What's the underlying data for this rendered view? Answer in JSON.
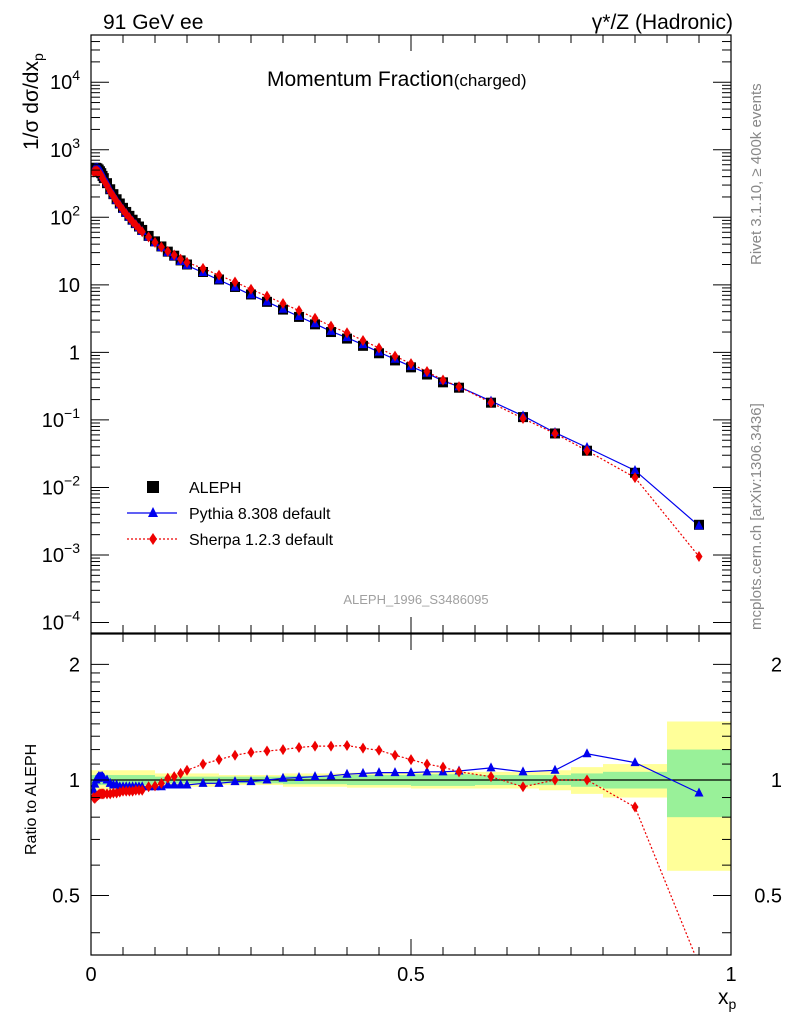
{
  "header": {
    "left": "91 GeV ee",
    "right": "γ*/Z (Hadronic)"
  },
  "side_labels": {
    "rivet": "Rivet 3.1.10, ≥ 400k events",
    "mcplots": "mcplots.cern.ch [arXiv:1306.3436]"
  },
  "colors": {
    "aleph": "#000000",
    "pythia": "#0000ee",
    "sherpa": "#ee0000",
    "band_inner": "#99f199",
    "band_outer": "#ffff99"
  },
  "chart_data": [
    {
      "type": "scatter",
      "title": "Momentum Fraction",
      "title_suffix": "(charged)",
      "ylabel": "1/σ dσ/dx",
      "ylabel_sub": "p",
      "analysis_tag": "ALEPH_1996_S3486095",
      "yscale": "log",
      "xlim": [
        0,
        1
      ],
      "ylim": [
        7e-05,
        50000
      ],
      "ytick_labels": [
        "10^-4",
        "10^-3",
        "10^-2",
        "10^-1",
        "1",
        "10",
        "10^2",
        "10^3",
        "10^4"
      ],
      "legend_position": "bottom-left",
      "series": [
        {
          "name": "ALEPH",
          "marker": "square",
          "x": [
            0.004,
            0.006,
            0.008,
            0.01,
            0.012,
            0.014,
            0.016,
            0.018,
            0.02,
            0.025,
            0.03,
            0.035,
            0.04,
            0.045,
            0.05,
            0.055,
            0.06,
            0.065,
            0.07,
            0.075,
            0.08,
            0.09,
            0.1,
            0.11,
            0.12,
            0.13,
            0.14,
            0.15,
            0.175,
            0.2,
            0.225,
            0.25,
            0.275,
            0.3,
            0.325,
            0.35,
            0.375,
            0.4,
            0.425,
            0.45,
            0.475,
            0.5,
            0.525,
            0.55,
            0.575,
            0.625,
            0.675,
            0.725,
            0.775,
            0.85,
            0.95
          ],
          "values": [
            520,
            540,
            540,
            530,
            510,
            480,
            450,
            410,
            380,
            320,
            260,
            220,
            185,
            160,
            138,
            120,
            105,
            92,
            82,
            73,
            65,
            53,
            44,
            37,
            31,
            27,
            23,
            20,
            15.5,
            12.0,
            9.3,
            7.2,
            5.6,
            4.3,
            3.35,
            2.6,
            2.0,
            1.6,
            1.25,
            0.97,
            0.76,
            0.6,
            0.47,
            0.36,
            0.3,
            0.18,
            0.11,
            0.063,
            0.035,
            0.0165,
            0.0028
          ]
        },
        {
          "name": "Pythia 8.308 default",
          "marker": "triangle",
          "x": [
            0.004,
            0.006,
            0.008,
            0.01,
            0.012,
            0.014,
            0.016,
            0.018,
            0.02,
            0.025,
            0.03,
            0.035,
            0.04,
            0.045,
            0.05,
            0.055,
            0.06,
            0.065,
            0.07,
            0.075,
            0.08,
            0.09,
            0.1,
            0.11,
            0.12,
            0.13,
            0.14,
            0.15,
            0.175,
            0.2,
            0.225,
            0.25,
            0.275,
            0.3,
            0.325,
            0.35,
            0.375,
            0.4,
            0.425,
            0.45,
            0.475,
            0.5,
            0.525,
            0.55,
            0.575,
            0.625,
            0.675,
            0.725,
            0.775,
            0.85,
            0.95
          ],
          "values": [
            490,
            527,
            540,
            535,
            520,
            490,
            460,
            420,
            385,
            320,
            255,
            213,
            179,
            154,
            132,
            115,
            100,
            88,
            79,
            70,
            62,
            51,
            42,
            35.5,
            30,
            26,
            22.2,
            19.4,
            15.2,
            11.8,
            9.2,
            7.1,
            5.6,
            4.35,
            3.4,
            2.65,
            2.05,
            1.65,
            1.3,
            1.01,
            0.79,
            0.62,
            0.49,
            0.38,
            0.31,
            0.19,
            0.115,
            0.065,
            0.039,
            0.0178,
            0.0027
          ]
        },
        {
          "name": "Sherpa 1.2.3 default",
          "marker": "diamond",
          "x": [
            0.004,
            0.006,
            0.008,
            0.01,
            0.012,
            0.014,
            0.016,
            0.018,
            0.02,
            0.025,
            0.03,
            0.035,
            0.04,
            0.045,
            0.05,
            0.055,
            0.06,
            0.065,
            0.07,
            0.075,
            0.08,
            0.09,
            0.1,
            0.11,
            0.12,
            0.13,
            0.14,
            0.15,
            0.175,
            0.2,
            0.225,
            0.25,
            0.275,
            0.3,
            0.325,
            0.35,
            0.375,
            0.4,
            0.425,
            0.45,
            0.475,
            0.5,
            0.525,
            0.55,
            0.575,
            0.625,
            0.675,
            0.725,
            0.775,
            0.85,
            0.95
          ],
          "values": [
            468,
            483,
            488,
            482,
            467,
            442,
            414,
            377,
            350,
            294,
            240,
            204,
            171,
            149,
            129,
            112,
            98,
            86,
            77,
            68,
            61,
            51,
            42.5,
            36.3,
            31.3,
            27.7,
            24,
            21.5,
            17.5,
            13.9,
            11.0,
            8.6,
            6.8,
            5.3,
            4.15,
            3.2,
            2.45,
            1.95,
            1.5,
            1.16,
            0.88,
            0.68,
            0.52,
            0.39,
            0.31,
            0.18,
            0.105,
            0.063,
            0.035,
            0.014,
            0.00095
          ]
        }
      ]
    },
    {
      "type": "scatter",
      "ylabel": "Ratio to ALEPH",
      "xlabel": "x",
      "xlabel_sub": "p",
      "xlim": [
        0,
        1
      ],
      "ylim": [
        0.35,
        2.4
      ],
      "ytick_labels": [
        "0.5",
        "1",
        "2"
      ],
      "xtick_labels": [
        "0",
        "0.5",
        "1"
      ],
      "bands": [
        {
          "x0": 0.0,
          "x1": 0.1,
          "inner": 0.03,
          "outer": 0.06
        },
        {
          "x0": 0.1,
          "x1": 0.2,
          "inner": 0.02,
          "outer": 0.04
        },
        {
          "x0": 0.2,
          "x1": 0.3,
          "inner": 0.02,
          "outer": 0.03
        },
        {
          "x0": 0.3,
          "x1": 0.4,
          "inner": 0.025,
          "outer": 0.04
        },
        {
          "x0": 0.4,
          "x1": 0.5,
          "inner": 0.03,
          "outer": 0.045
        },
        {
          "x0": 0.5,
          "x1": 0.6,
          "inner": 0.035,
          "outer": 0.05
        },
        {
          "x0": 0.6,
          "x1": 0.7,
          "inner": 0.03,
          "outer": 0.05
        },
        {
          "x0": 0.7,
          "x1": 0.75,
          "inner": 0.03,
          "outer": 0.06
        },
        {
          "x0": 0.75,
          "x1": 0.8,
          "inner": 0.04,
          "outer": 0.08
        },
        {
          "x0": 0.8,
          "x1": 0.9,
          "inner": 0.05,
          "outer": 0.1
        },
        {
          "x0": 0.9,
          "x1": 1.0,
          "inner": 0.2,
          "outer": 0.42
        }
      ],
      "series": [
        {
          "name": "Pythia 8.308 default",
          "marker": "triangle",
          "x": [
            0.004,
            0.006,
            0.008,
            0.01,
            0.012,
            0.014,
            0.016,
            0.018,
            0.02,
            0.025,
            0.03,
            0.035,
            0.04,
            0.045,
            0.05,
            0.055,
            0.06,
            0.065,
            0.07,
            0.075,
            0.08,
            0.09,
            0.1,
            0.11,
            0.12,
            0.13,
            0.14,
            0.15,
            0.175,
            0.2,
            0.225,
            0.25,
            0.275,
            0.3,
            0.325,
            0.35,
            0.375,
            0.4,
            0.425,
            0.45,
            0.475,
            0.5,
            0.525,
            0.55,
            0.575,
            0.625,
            0.675,
            0.725,
            0.775,
            0.85,
            0.95
          ],
          "values": [
            0.94,
            0.975,
            1.0,
            1.01,
            1.02,
            1.02,
            1.02,
            1.02,
            1.01,
            1.0,
            0.98,
            0.97,
            0.97,
            0.96,
            0.96,
            0.96,
            0.96,
            0.96,
            0.96,
            0.96,
            0.96,
            0.96,
            0.96,
            0.96,
            0.97,
            0.97,
            0.97,
            0.97,
            0.98,
            0.98,
            0.99,
            0.99,
            1.0,
            1.01,
            1.015,
            1.02,
            1.025,
            1.035,
            1.04,
            1.045,
            1.045,
            1.045,
            1.05,
            1.05,
            1.055,
            1.075,
            1.05,
            1.06,
            1.17,
            1.11,
            0.925
          ]
        },
        {
          "name": "Sherpa 1.2.3 default",
          "marker": "diamond",
          "x": [
            0.004,
            0.006,
            0.008,
            0.01,
            0.012,
            0.014,
            0.016,
            0.018,
            0.02,
            0.025,
            0.03,
            0.035,
            0.04,
            0.045,
            0.05,
            0.055,
            0.06,
            0.065,
            0.07,
            0.075,
            0.08,
            0.09,
            0.1,
            0.11,
            0.12,
            0.13,
            0.14,
            0.15,
            0.175,
            0.2,
            0.225,
            0.25,
            0.275,
            0.3,
            0.325,
            0.35,
            0.375,
            0.4,
            0.425,
            0.45,
            0.475,
            0.5,
            0.525,
            0.55,
            0.575,
            0.625,
            0.675,
            0.725,
            0.775,
            0.85,
            0.95
          ],
          "values": [
            0.9,
            0.895,
            0.903,
            0.91,
            0.915,
            0.92,
            0.92,
            0.92,
            0.92,
            0.92,
            0.92,
            0.925,
            0.925,
            0.93,
            0.935,
            0.935,
            0.935,
            0.935,
            0.94,
            0.94,
            0.94,
            0.96,
            0.965,
            0.98,
            1.01,
            1.02,
            1.04,
            1.06,
            1.1,
            1.13,
            1.16,
            1.18,
            1.19,
            1.2,
            1.215,
            1.225,
            1.225,
            1.23,
            1.21,
            1.195,
            1.16,
            1.13,
            1.1,
            1.08,
            1.05,
            1.02,
            0.96,
            1.0,
            1.0,
            0.85,
            0.33
          ]
        }
      ]
    }
  ]
}
